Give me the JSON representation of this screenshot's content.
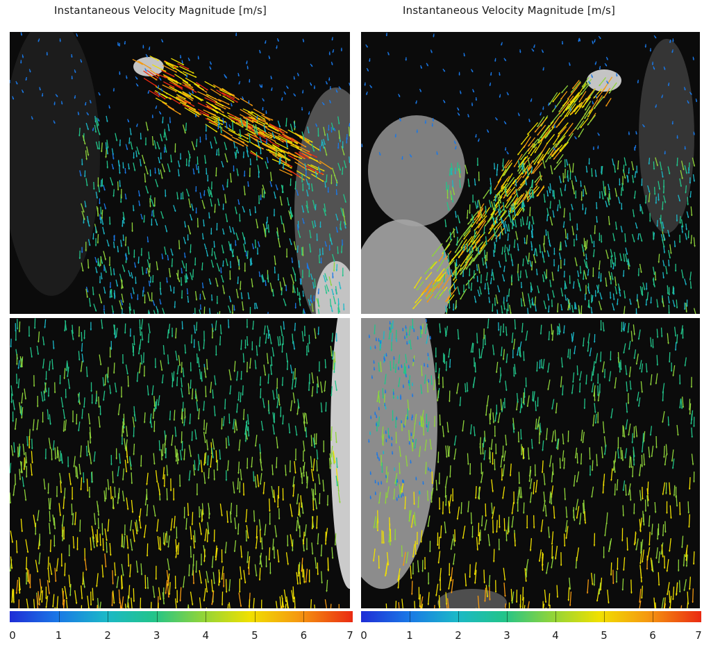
{
  "panels": [
    {
      "title": "Instantaneous Velocity Magnitude [m/s]",
      "colorbar": {
        "min": 0,
        "max": 7,
        "tick_labels": [
          "0",
          "1",
          "2",
          "3",
          "4",
          "5",
          "6",
          "7"
        ]
      }
    },
    {
      "title": "Instantaneous Velocity Magnitude [m/s]",
      "colorbar": {
        "min": 0,
        "max": 7,
        "tick_labels": [
          "0",
          "1",
          "2",
          "3",
          "4",
          "5",
          "6",
          "7"
        ]
      }
    }
  ],
  "colormap": [
    "#1f2dd6",
    "#1a78e6",
    "#1bb8c8",
    "#22c48a",
    "#8fd43a",
    "#f0e000",
    "#f59a10",
    "#ea2a12"
  ]
}
